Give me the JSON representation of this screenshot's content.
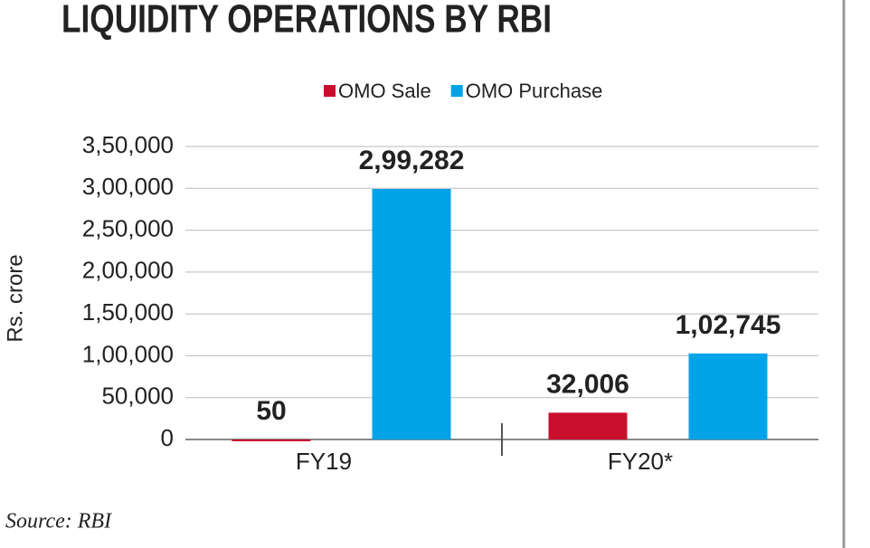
{
  "chart_data": {
    "type": "bar",
    "title": "LIQUIDITY OPERATIONS BY RBI",
    "y_label": "Rs. crore",
    "source": "Source: RBI",
    "categories": [
      "FY19",
      "FY20*"
    ],
    "series": [
      {
        "name": "OMO Sale",
        "color": "#c8102e",
        "values": [
          50,
          32006
        ],
        "value_labels": [
          "50",
          "32,006"
        ]
      },
      {
        "name": "OMO Purchase",
        "color": "#00a3e8",
        "values": [
          299282,
          102745
        ],
        "value_labels": [
          "2,99,282",
          "1,02,745"
        ]
      }
    ],
    "ylim": [
      0,
      350000
    ],
    "yticks": [
      0,
      {
        "value": 50000,
        "label": "50,000"
      },
      {
        "value": 100000,
        "label": "1,00,000"
      },
      {
        "value": 150000,
        "label": "1,50,000"
      },
      {
        "value": 200000,
        "label": "2,00,000"
      },
      {
        "value": 250000,
        "label": "2,50,000"
      },
      {
        "value": 300000,
        "label": "3,00,000"
      },
      {
        "value": 350000,
        "label": "3,50,000"
      }
    ],
    "grid": true
  }
}
